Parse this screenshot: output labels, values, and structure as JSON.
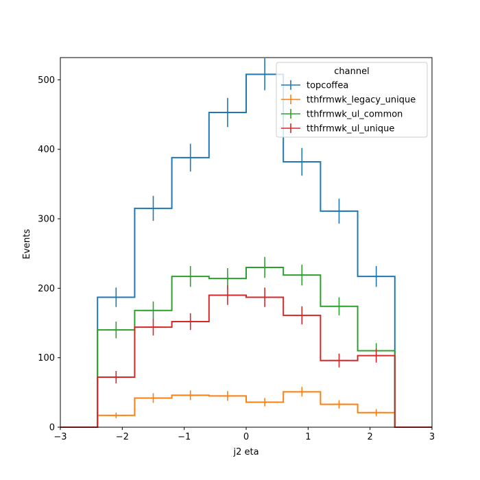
{
  "chart_data": {
    "type": "line",
    "style": "step-histogram-with-errorbars",
    "xlabel": "j2 eta",
    "ylabel": "Events",
    "xlim": [
      -3,
      3
    ],
    "ylim": [
      0,
      532
    ],
    "x_ticks": [
      -3,
      -2,
      -1,
      0,
      1,
      2,
      3
    ],
    "x_tick_labels": [
      "−3",
      "−2",
      "−1",
      "0",
      "1",
      "2",
      "3"
    ],
    "y_ticks": [
      0,
      100,
      200,
      300,
      400,
      500
    ],
    "y_tick_labels": [
      "0",
      "100",
      "200",
      "300",
      "400",
      "500"
    ],
    "bin_edges": [
      -3.0,
      -2.4,
      -1.8,
      -1.2,
      -0.6,
      0.0,
      0.6,
      1.2,
      1.8,
      2.4,
      3.0
    ],
    "grid": false,
    "legend": {
      "title": "channel",
      "placement": "top-right"
    },
    "series": [
      {
        "name": "topcoffea",
        "color": "#1f77b4",
        "values": [
          0,
          187,
          315,
          388,
          453,
          508,
          382,
          311,
          217,
          0
        ],
        "errors": [
          0,
          14,
          18,
          20,
          21,
          23,
          20,
          18,
          15,
          0
        ]
      },
      {
        "name": "tthfrmwk_legacy_unique",
        "color": "#ff7f0e",
        "values": [
          0,
          17,
          42,
          46,
          45,
          36,
          51,
          33,
          21,
          0
        ],
        "errors": [
          0,
          4,
          7,
          7,
          7,
          6,
          7,
          6,
          5,
          0
        ]
      },
      {
        "name": "tthfrmwk_ul_common",
        "color": "#2ca02c",
        "values": [
          0,
          140,
          168,
          217,
          214,
          230,
          219,
          174,
          110,
          0
        ],
        "errors": [
          0,
          12,
          13,
          15,
          15,
          15,
          15,
          13,
          11,
          0
        ]
      },
      {
        "name": "tthfrmwk_ul_unique",
        "color": "#d62728",
        "values": [
          0,
          72,
          144,
          152,
          190,
          187,
          161,
          96,
          103,
          0
        ],
        "errors": [
          0,
          9,
          12,
          12,
          14,
          14,
          13,
          10,
          10,
          0
        ]
      }
    ]
  }
}
